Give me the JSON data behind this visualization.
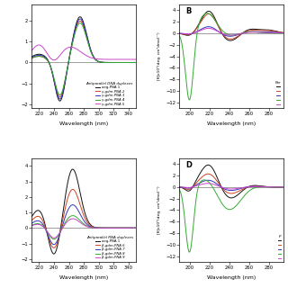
{
  "colors": [
    "#111111",
    "#cc4422",
    "#3333bb",
    "#33aa33",
    "#cc44cc"
  ],
  "background_color": "#ffffff",
  "zero_line_color": "#777777",
  "panel_A": {
    "xlim": [
      210,
      350
    ],
    "ylim": [
      -2.2,
      2.8
    ],
    "xticks": [
      220,
      240,
      260,
      280,
      300,
      320,
      340
    ],
    "xlabel": "Wavelength (nm)",
    "legend_title": "Antiparallel DNA duplexes",
    "legend_entries": [
      "aeg-PNA 1",
      "γ-gdm-PNA 2",
      "γ-gdm-PNA 3",
      "γ-gdm-PNA 4",
      "γ-gdm-PNA 5"
    ]
  },
  "panel_B": {
    "label": "B",
    "xlim": [
      190,
      295
    ],
    "ylim": [
      -13,
      5.0
    ],
    "xticks": [
      200,
      220,
      240,
      260,
      280
    ],
    "xlabel": "Wavelength (nm)",
    "ylabel": "[θ]x10³(deg. cm²dmol⁻¹)",
    "legend_title": "Par"
  },
  "panel_C": {
    "xlim": [
      210,
      350
    ],
    "ylim": [
      -2.2,
      4.5
    ],
    "xticks": [
      220,
      240,
      260,
      280,
      300,
      320,
      340
    ],
    "xlabel": "Wavelength (nm)",
    "legend_title": "Antiparallel RNA duplexes",
    "legend_entries": [
      "aeg-PNA 1",
      "β-gdm-PNA 6",
      "β-gdm-PNA 7",
      "β-gdm-PNA 8",
      "β-gdm-PNA 9"
    ]
  },
  "panel_D": {
    "label": "D",
    "xlim": [
      190,
      295
    ],
    "ylim": [
      -13,
      5.0
    ],
    "xticks": [
      200,
      220,
      240,
      260,
      280
    ],
    "xlabel": "Wavelength (nm)",
    "ylabel": "[θ]x10³(deg. cm²dmol⁻¹)",
    "legend_title": "P"
  }
}
